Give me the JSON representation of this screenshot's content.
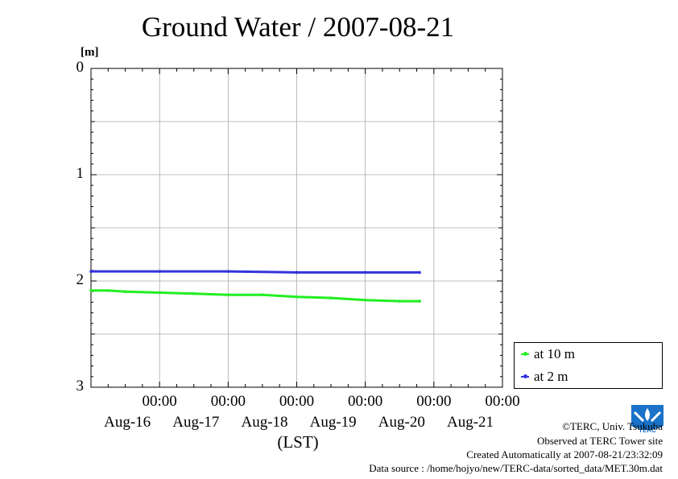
{
  "title": "Ground Water / 2007-08-21",
  "chart_data": {
    "type": "line",
    "ylabel": "[m]",
    "xlabel": "(LST)",
    "ylim": [
      3,
      0
    ],
    "yticks": [
      "0",
      "1",
      "2",
      "3"
    ],
    "xlim": [
      "2007-08-15T00:00",
      "2007-08-21T00:00"
    ],
    "xticks": [
      {
        "time": "00:00",
        "date": "Aug-16"
      },
      {
        "time": "00:00",
        "date": "Aug-17"
      },
      {
        "time": "00:00",
        "date": "Aug-18"
      },
      {
        "time": "00:00",
        "date": "Aug-19"
      },
      {
        "time": "00:00",
        "date": "Aug-20"
      },
      {
        "time": "00:00",
        "date": "Aug-21"
      }
    ],
    "grid": true,
    "legend_position": "bottom-right",
    "series": [
      {
        "name": "at 10 m",
        "color": "#22ee22",
        "points": [
          [
            "2007-08-15T00:00",
            2.09
          ],
          [
            "2007-08-15T06:00",
            2.09
          ],
          [
            "2007-08-15T12:00",
            2.1
          ],
          [
            "2007-08-16T00:00",
            2.11
          ],
          [
            "2007-08-16T12:00",
            2.12
          ],
          [
            "2007-08-17T00:00",
            2.13
          ],
          [
            "2007-08-17T12:00",
            2.13
          ],
          [
            "2007-08-18T00:00",
            2.15
          ],
          [
            "2007-08-18T12:00",
            2.16
          ],
          [
            "2007-08-19T00:00",
            2.18
          ],
          [
            "2007-08-19T12:00",
            2.19
          ],
          [
            "2007-08-19T19:00",
            2.19
          ]
        ]
      },
      {
        "name": "at 2 m",
        "color": "#3333dd",
        "points": [
          [
            "2007-08-15T00:00",
            1.91
          ],
          [
            "2007-08-16T00:00",
            1.91
          ],
          [
            "2007-08-17T00:00",
            1.91
          ],
          [
            "2007-08-18T00:00",
            1.92
          ],
          [
            "2007-08-19T00:00",
            1.92
          ],
          [
            "2007-08-19T19:00",
            1.92
          ]
        ]
      }
    ]
  },
  "credits": {
    "copyright": "©TERC, Univ. Tsukuba",
    "observed": "Observed at TERC Tower site",
    "created": "Created Automatically at 2007-08-21/23:32:09",
    "source": "Data source : /home/hojyo/new/TERC-data/sorted_data/MET.30m.dat"
  },
  "logo": {
    "text": "TERC",
    "color": "#1a73c9"
  }
}
